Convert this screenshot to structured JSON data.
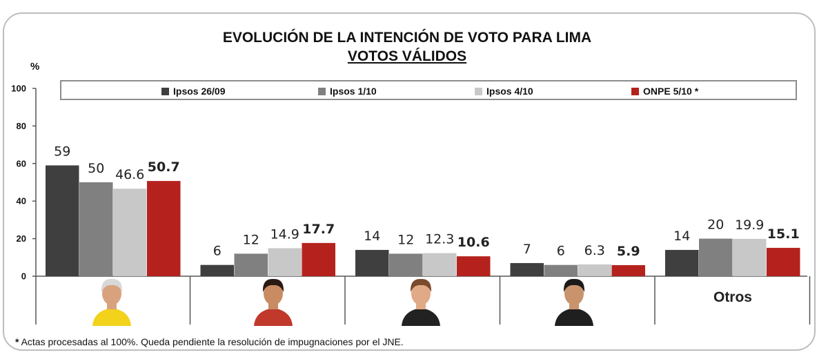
{
  "title": "EVOLUCIÓN DE LA INTENCIÓN DE VOTO PARA LIMA",
  "subtitle": "VOTOS VÁLIDOS",
  "y_unit": "%",
  "footnote_marker": "*",
  "footnote_text": " Actas procesadas al 100%. Queda pendiente la resolución de impugnaciones por el JNE.",
  "chart_data": {
    "type": "bar",
    "ylim": [
      0,
      100
    ],
    "yticks": [
      0,
      20,
      40,
      60,
      80,
      100
    ],
    "grid": false,
    "legend_position": "top",
    "categories": [
      "",
      "",
      "",
      "",
      "Otros"
    ],
    "series": [
      {
        "name": "Ipsos 26/09",
        "color": "#3f3f3f",
        "values": [
          59,
          6,
          14,
          7,
          14
        ],
        "labels": [
          "59",
          "6",
          "14",
          "7",
          "14"
        ],
        "bold": false
      },
      {
        "name": "Ipsos 1/10",
        "color": "#808080",
        "values": [
          50,
          12,
          12,
          6,
          20
        ],
        "labels": [
          "50",
          "12",
          "12",
          "6",
          "20"
        ],
        "bold": false
      },
      {
        "name": "Ipsos 4/10",
        "color": "#c8c8c8",
        "values": [
          46.6,
          14.9,
          12.3,
          6.3,
          19.9
        ],
        "labels": [
          "46.6",
          "14.9",
          "12.3",
          "6.3",
          "19.9"
        ],
        "bold": false
      },
      {
        "name": "ONPE 5/10 *",
        "color": "#b5221d",
        "values": [
          50.7,
          17.7,
          10.6,
          5.9,
          15.1
        ],
        "labels": [
          "50.7",
          "17.7",
          "10.6",
          "5.9",
          "15.1"
        ],
        "bold": true
      }
    ]
  }
}
